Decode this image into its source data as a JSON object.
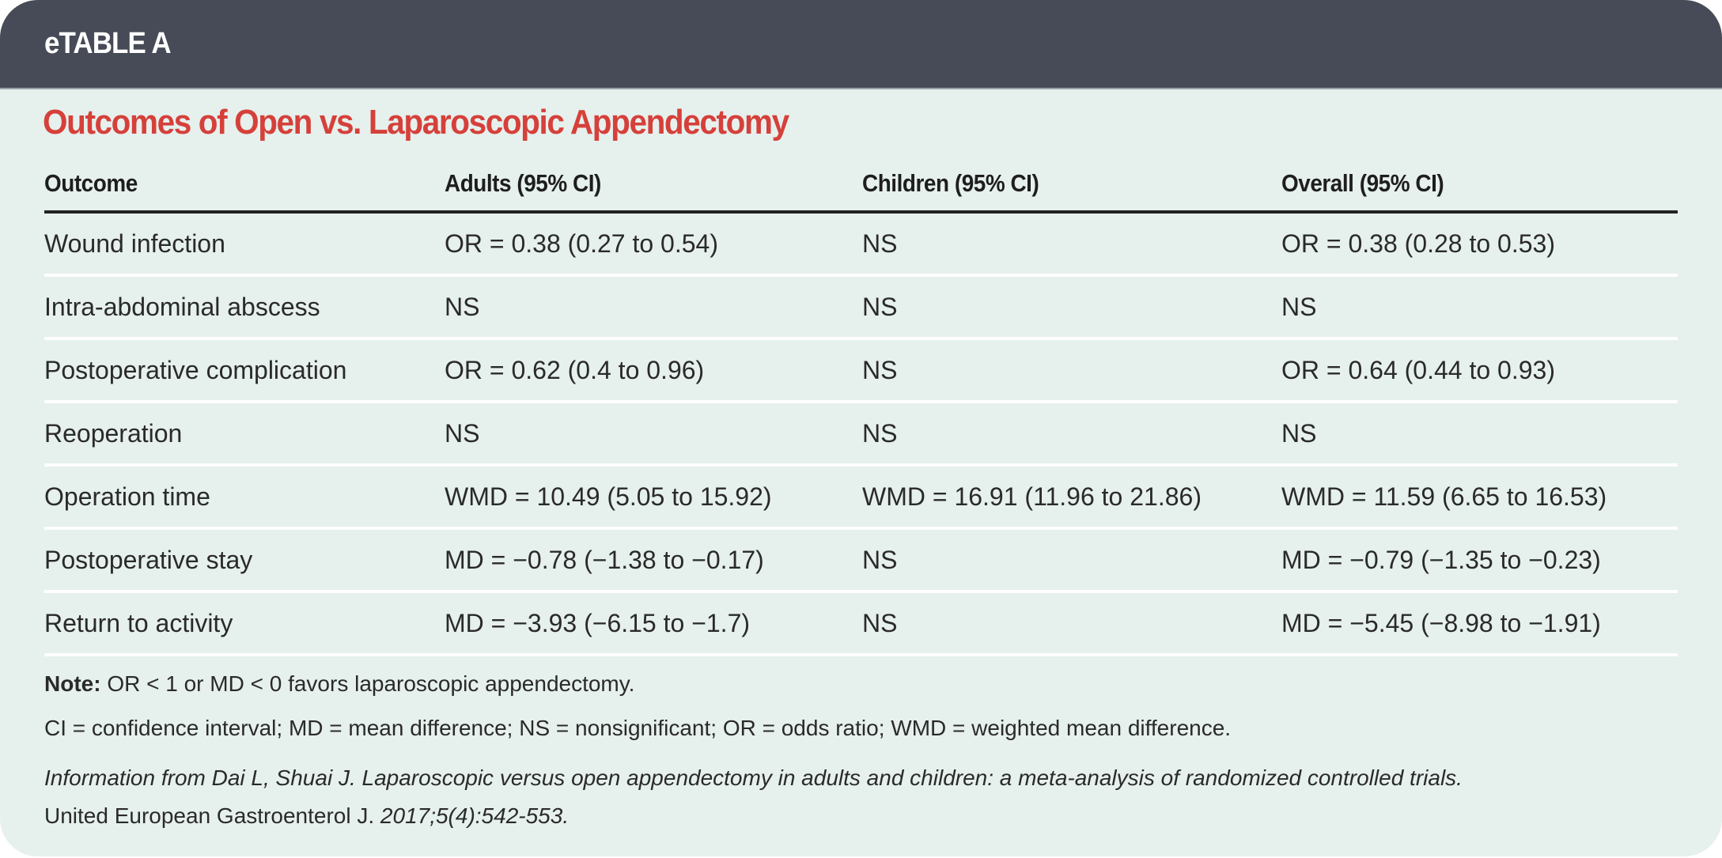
{
  "header": {
    "label": "eTABLE A"
  },
  "title": "Outcomes of Open vs. Laparoscopic Appendectomy",
  "table": {
    "columns": [
      "Outcome",
      "Adults (95% CI)",
      "Children (95% CI)",
      "Overall (95% CI)"
    ],
    "rows": [
      [
        "Wound infection",
        "OR = 0.38 (0.27 to 0.54)",
        "NS",
        "OR = 0.38 (0.28 to 0.53)"
      ],
      [
        "Intra-abdominal abscess",
        "NS",
        "NS",
        "NS"
      ],
      [
        "Postoperative complication",
        "OR = 0.62 (0.4 to 0.96)",
        "NS",
        "OR = 0.64 (0.44 to 0.93)"
      ],
      [
        "Reoperation",
        "NS",
        "NS",
        "NS"
      ],
      [
        "Operation time",
        "WMD = 10.49 (5.05 to 15.92)",
        "WMD = 16.91 (11.96 to 21.86)",
        "WMD = 11.59 (6.65 to 16.53)"
      ],
      [
        "Postoperative stay",
        "MD = −0.78 (−1.38 to −0.17)",
        "NS",
        "MD = −0.79 (−1.35 to −0.23)"
      ],
      [
        "Return to activity",
        "MD = −3.93 (−6.15 to −1.7)",
        "NS",
        "MD = −5.45 (−8.98 to −1.91)"
      ]
    ]
  },
  "notes": {
    "note_label": "Note:",
    "note_text": " OR < 1 or MD < 0 favors laparoscopic appendectomy.",
    "abbreviations": "CI = confidence interval; MD = mean difference; NS = nonsignificant; OR = odds ratio; WMD = weighted mean difference.",
    "source_italic": "Information from Dai L, Shuai J. Laparoscopic versus open appendectomy in adults and children: a meta-analysis of randomized controlled trials.",
    "source_journal": "United European Gastroenterol J.",
    "source_citation": " 2017;5(4):542-553."
  },
  "colors": {
    "header_bg": "#474b57",
    "title": "#d6403a",
    "background": "#e6f0ed"
  }
}
